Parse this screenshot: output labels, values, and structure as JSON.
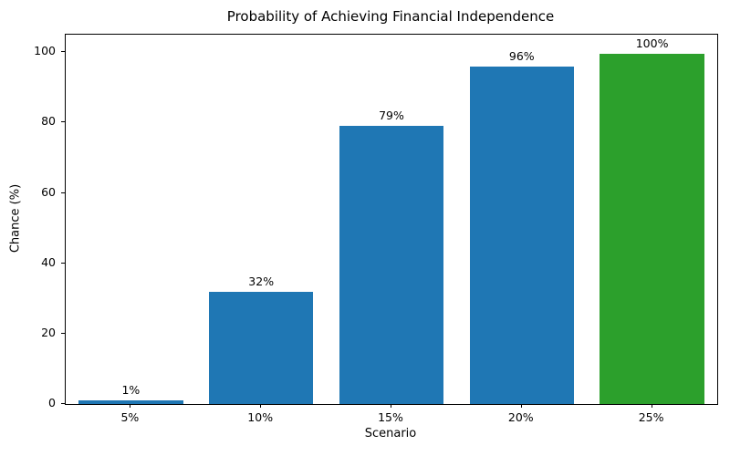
{
  "chart_data": {
    "type": "bar",
    "title": "Probability of Achieving Financial Independence",
    "xlabel": "Scenario",
    "ylabel": "Chance (%)",
    "categories": [
      "5%",
      "10%",
      "15%",
      "20%",
      "25%"
    ],
    "values": [
      1,
      32,
      79,
      96,
      99.5
    ],
    "bar_labels": [
      "1%",
      "32%",
      "79%",
      "96%",
      "100%"
    ],
    "bar_colors": [
      "#1f77b4",
      "#1f77b4",
      "#1f77b4",
      "#1f77b4",
      "#2ca02c"
    ],
    "yticks": [
      0,
      20,
      40,
      60,
      80,
      100
    ],
    "ylim": [
      0,
      105
    ],
    "grid": false,
    "legend_position": "none",
    "colors": {
      "bar_blue": "#1f77b4",
      "bar_green": "#2ca02c",
      "axis": "#000000",
      "background": "#ffffff"
    }
  }
}
